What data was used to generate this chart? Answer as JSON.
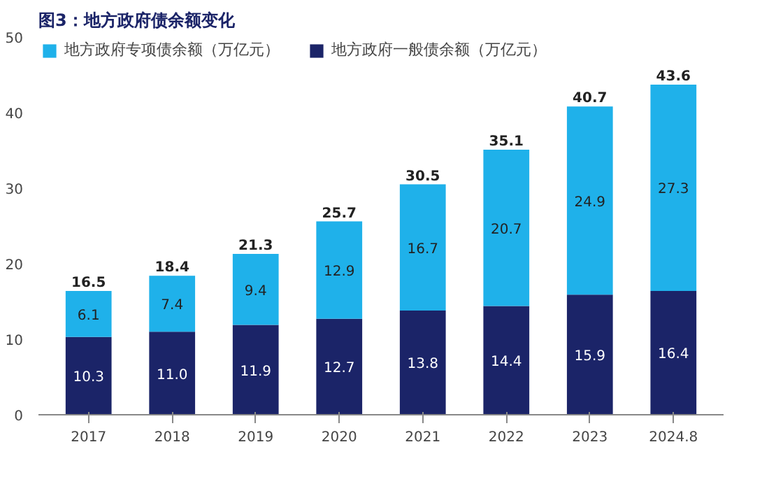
{
  "chart_data": {
    "type": "bar",
    "title": "图3：地方政府债余额变化",
    "stacked": true,
    "categories": [
      "2017",
      "2018",
      "2019",
      "2020",
      "2021",
      "2022",
      "2023",
      "2024.8"
    ],
    "series": [
      {
        "name": "地方政府一般债余额（万亿元）",
        "color": "#1b2468",
        "values": [
          10.3,
          11.0,
          11.9,
          12.7,
          13.8,
          14.4,
          15.9,
          16.4
        ],
        "value_labels": [
          "10.3",
          "11.0",
          "11.9",
          "12.7",
          "13.8",
          "14.4",
          "15.9",
          "16.4"
        ]
      },
      {
        "name": "地方政府专项债余额（万亿元）",
        "color": "#1fb1ea",
        "values": [
          6.1,
          7.4,
          9.4,
          12.9,
          16.7,
          20.7,
          24.9,
          27.3
        ],
        "value_labels": [
          "6.1",
          "7.4",
          "9.4",
          "12.9",
          "16.7",
          "20.7",
          "24.9",
          "27.3"
        ]
      }
    ],
    "totals": [
      "16.5",
      "18.4",
      "21.3",
      "25.7",
      "30.5",
      "35.1",
      "40.7",
      "43.6"
    ],
    "ylim": [
      0,
      50
    ],
    "yticks": [
      0,
      10,
      20,
      30,
      40,
      50
    ],
    "grid": false,
    "legend": "top"
  }
}
